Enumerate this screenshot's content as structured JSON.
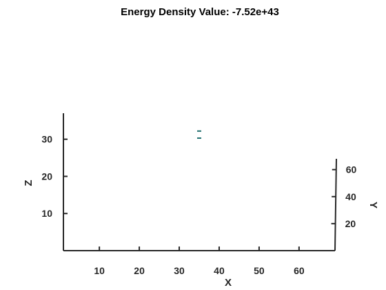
{
  "chart_data": {
    "type": "scatter",
    "title": "Energy Density Value: -7.52e+43",
    "xlabel": "X",
    "ylabel": "Y",
    "zlabel": "Z",
    "x_ticks": [
      "10",
      "20",
      "30",
      "40",
      "50",
      "60"
    ],
    "x_tick_values": [
      10,
      20,
      30,
      40,
      50,
      60
    ],
    "y_ticks": [
      "20",
      "40",
      "60"
    ],
    "y_tick_values": [
      20,
      40,
      60
    ],
    "z_ticks": [
      "10",
      "20",
      "30"
    ],
    "z_tick_values": [
      10,
      20,
      30
    ],
    "xlim": [
      1,
      69
    ],
    "ylim": [
      0,
      68
    ],
    "zlim": [
      0,
      37
    ],
    "grid": false,
    "marker_color": "#1f6e6e",
    "points": [
      {
        "x": 35,
        "z": 32.2
      },
      {
        "x": 35,
        "z": 30.3
      }
    ]
  }
}
